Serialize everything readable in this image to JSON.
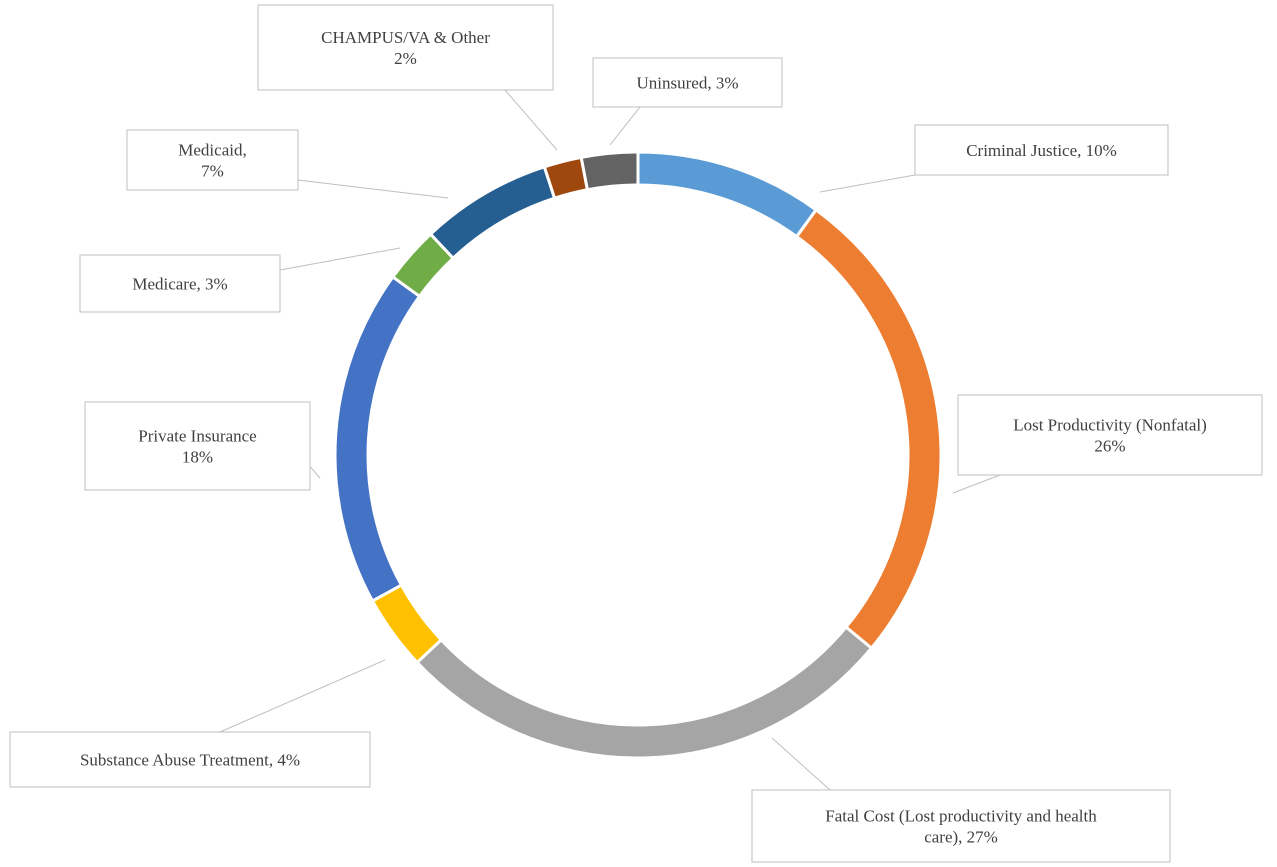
{
  "chart_data": {
    "type": "donut",
    "labels": [
      "Criminal Justice, 10%",
      "Lost Productivity (Nonfatal)\n26%",
      "Fatal Cost (Lost productivity and health\ncare), 27%",
      "Substance Abuse Treatment, 4%",
      "Private Insurance\n18%",
      "Medicare, 3%",
      "Medicaid,\n7%",
      "CHAMPUS/VA & Other\n2%",
      "Uninsured, 3%"
    ],
    "values": [
      10,
      26,
      27,
      4,
      18,
      3,
      7,
      2,
      3
    ],
    "colors": [
      "#5b9bd5",
      "#ed7d31",
      "#a5a5a5",
      "#ffc000",
      "#4472c4",
      "#70ad47",
      "#255e91",
      "#9e480e",
      "#636363"
    ]
  }
}
